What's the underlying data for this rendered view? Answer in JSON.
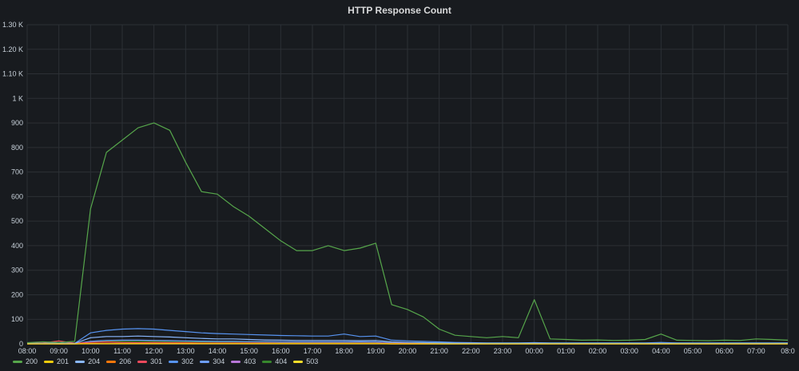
{
  "panel": {
    "title": "HTTP Response Count"
  },
  "chart_data": {
    "type": "line",
    "title": "HTTP Response Count",
    "xlabel": "",
    "ylabel": "",
    "x_ticks": [
      "08:00",
      "09:00",
      "10:00",
      "11:00",
      "12:00",
      "13:00",
      "14:00",
      "15:00",
      "16:00",
      "17:00",
      "18:00",
      "19:00",
      "20:00",
      "21:00",
      "22:00",
      "23:00",
      "00:00",
      "01:00",
      "02:00",
      "03:00",
      "04:00",
      "05:00",
      "06:00",
      "07:00",
      "08:0"
    ],
    "y_ticks": [
      "0",
      "100",
      "200",
      "300",
      "400",
      "500",
      "600",
      "700",
      "800",
      "900",
      "1 K",
      "1.10 K",
      "1.20 K",
      "1.30 K"
    ],
    "ylim": [
      0,
      1300
    ],
    "grid": true,
    "legend_position": "bottom-left",
    "x": [
      "08:00",
      "08:30",
      "09:00",
      "09:30",
      "10:00",
      "10:30",
      "11:00",
      "11:30",
      "12:00",
      "12:30",
      "13:00",
      "13:30",
      "14:00",
      "14:30",
      "15:00",
      "15:30",
      "16:00",
      "16:30",
      "17:00",
      "17:30",
      "18:00",
      "18:30",
      "19:00",
      "19:30",
      "20:00",
      "20:30",
      "21:00",
      "21:30",
      "22:00",
      "22:30",
      "23:00",
      "23:30",
      "00:00",
      "00:30",
      "01:00",
      "01:30",
      "02:00",
      "02:30",
      "03:00",
      "03:30",
      "04:00",
      "04:30",
      "05:00",
      "05:30",
      "06:00",
      "06:30",
      "07:00",
      "07:30",
      "08:00"
    ],
    "series": [
      {
        "name": "200",
        "color": "#56a64b",
        "values": [
          5,
          8,
          6,
          10,
          550,
          780,
          830,
          880,
          900,
          870,
          740,
          620,
          610,
          560,
          520,
          470,
          420,
          380,
          380,
          400,
          380,
          390,
          410,
          160,
          140,
          110,
          60,
          35,
          30,
          25,
          30,
          25,
          180,
          20,
          18,
          15,
          16,
          14,
          15,
          18,
          40,
          15,
          14,
          13,
          15,
          14,
          20,
          18,
          15
        ]
      },
      {
        "name": "201",
        "color": "#f2cc0c",
        "values": [
          0,
          0,
          0,
          0,
          1,
          1,
          1,
          1,
          1,
          1,
          1,
          1,
          1,
          1,
          1,
          1,
          1,
          1,
          1,
          1,
          1,
          1,
          1,
          0,
          0,
          0,
          0,
          0,
          0,
          0,
          0,
          0,
          0,
          0,
          0,
          0,
          0,
          0,
          0,
          0,
          0,
          0,
          0,
          0,
          0,
          0,
          0,
          0,
          0
        ]
      },
      {
        "name": "204",
        "color": "#8ab8ff",
        "values": [
          2,
          2,
          2,
          2,
          25,
          30,
          30,
          32,
          30,
          28,
          25,
          22,
          20,
          20,
          18,
          16,
          15,
          14,
          14,
          14,
          14,
          13,
          14,
          8,
          6,
          5,
          4,
          3,
          3,
          2,
          2,
          2,
          3,
          2,
          2,
          2,
          2,
          2,
          2,
          2,
          2,
          2,
          2,
          2,
          2,
          2,
          2,
          2,
          2
        ]
      },
      {
        "name": "206",
        "color": "#ff780a",
        "values": [
          0,
          1,
          0,
          1,
          2,
          2,
          2,
          2,
          2,
          2,
          2,
          2,
          2,
          2,
          2,
          2,
          2,
          2,
          2,
          2,
          2,
          2,
          2,
          1,
          1,
          1,
          1,
          1,
          1,
          1,
          1,
          1,
          1,
          1,
          1,
          1,
          1,
          1,
          1,
          1,
          1,
          1,
          1,
          1,
          1,
          1,
          1,
          1,
          1
        ]
      },
      {
        "name": "301",
        "color": "#f2495c",
        "values": [
          3,
          4,
          12,
          3,
          6,
          8,
          6,
          5,
          6,
          5,
          5,
          4,
          4,
          4,
          4,
          4,
          3,
          3,
          3,
          3,
          3,
          3,
          3,
          2,
          2,
          2,
          2,
          2,
          1,
          1,
          1,
          1,
          1,
          1,
          1,
          1,
          1,
          1,
          1,
          1,
          1,
          1,
          1,
          1,
          1,
          1,
          1,
          1,
          1
        ]
      },
      {
        "name": "302",
        "color": "#5794f2",
        "values": [
          2,
          2,
          2,
          2,
          45,
          55,
          60,
          62,
          60,
          55,
          50,
          45,
          42,
          40,
          38,
          36,
          34,
          33,
          32,
          32,
          40,
          30,
          32,
          15,
          12,
          10,
          8,
          6,
          5,
          4,
          4,
          4,
          5,
          4,
          4,
          4,
          4,
          4,
          4,
          4,
          6,
          4,
          4,
          4,
          4,
          4,
          4,
          4,
          4
        ]
      },
      {
        "name": "304",
        "color": "#6e9fff",
        "values": [
          1,
          1,
          1,
          1,
          10,
          14,
          15,
          15,
          14,
          13,
          12,
          11,
          10,
          10,
          9,
          9,
          8,
          8,
          8,
          8,
          8,
          8,
          8,
          4,
          3,
          3,
          2,
          2,
          2,
          2,
          2,
          2,
          2,
          2,
          2,
          2,
          2,
          2,
          2,
          2,
          2,
          2,
          2,
          2,
          2,
          2,
          2,
          2,
          2
        ]
      },
      {
        "name": "403",
        "color": "#b877d9",
        "values": [
          0,
          0,
          0,
          0,
          1,
          1,
          1,
          1,
          1,
          1,
          1,
          1,
          1,
          1,
          1,
          1,
          1,
          1,
          1,
          1,
          1,
          1,
          1,
          0,
          0,
          0,
          0,
          0,
          0,
          0,
          0,
          0,
          0,
          0,
          0,
          0,
          0,
          0,
          0,
          0,
          0,
          0,
          0,
          0,
          0,
          0,
          0,
          0,
          0
        ]
      },
      {
        "name": "404",
        "color": "#37872d",
        "values": [
          3,
          3,
          3,
          3,
          8,
          10,
          10,
          10,
          10,
          9,
          9,
          8,
          8,
          8,
          8,
          7,
          7,
          7,
          7,
          7,
          7,
          7,
          7,
          5,
          5,
          5,
          4,
          4,
          4,
          4,
          4,
          4,
          5,
          4,
          4,
          4,
          4,
          4,
          4,
          4,
          5,
          4,
          4,
          4,
          4,
          4,
          4,
          4,
          4
        ]
      },
      {
        "name": "503",
        "color": "#fade2a",
        "values": [
          0,
          0,
          0,
          0,
          0,
          0,
          0,
          0,
          0,
          0,
          0,
          0,
          0,
          0,
          0,
          0,
          0,
          0,
          0,
          0,
          0,
          0,
          0,
          0,
          0,
          0,
          0,
          0,
          0,
          0,
          0,
          0,
          0,
          0,
          0,
          0,
          0,
          0,
          0,
          0,
          0,
          0,
          0,
          0,
          0,
          0,
          0,
          0,
          0
        ]
      }
    ]
  }
}
